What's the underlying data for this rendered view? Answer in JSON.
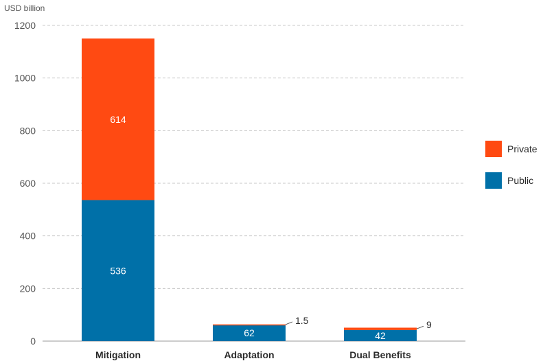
{
  "chart_data": {
    "type": "bar",
    "stacked": true,
    "ylabel": "USD billion",
    "ylim": [
      0,
      1200
    ],
    "yticks": [
      0,
      200,
      400,
      600,
      800,
      1000,
      1200
    ],
    "grid": true,
    "legend_position": "right",
    "categories": [
      "Mitigation",
      "Adaptation",
      "Dual Benefits"
    ],
    "series": [
      {
        "name": "Public",
        "color": "#0070a8",
        "values": [
          536,
          62,
          42
        ],
        "labels": [
          "536",
          "62",
          "42"
        ]
      },
      {
        "name": "Private",
        "color": "#ff4a12",
        "values": [
          614,
          1.5,
          9
        ],
        "labels": [
          "614",
          "1.5",
          "9"
        ]
      }
    ],
    "legend": [
      {
        "name": "Private",
        "color": "#ff4a12"
      },
      {
        "name": "Public",
        "color": "#0070a8"
      }
    ]
  }
}
